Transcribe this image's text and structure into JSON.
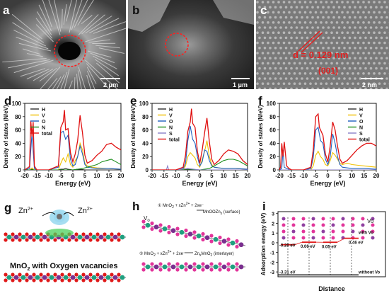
{
  "figure": {
    "panels": {
      "a": {
        "letter": "a",
        "scale_bar": "2 μm"
      },
      "b": {
        "letter": "b",
        "scale_bar": "1 μm"
      },
      "c": {
        "letter": "c",
        "scale_bar": "2 nm",
        "d_spacing": "d = 0.129 nm",
        "plane": "(001)"
      },
      "d": {
        "letter": "d"
      },
      "e": {
        "letter": "e"
      },
      "f": {
        "letter": "f"
      },
      "g": {
        "letter": "g",
        "ion_left": "Zn2+",
        "ion_right": "Zn2+",
        "caption": "MnO2 with Oxygen vacancies"
      },
      "h": {
        "letter": "h",
        "vo": "Vo",
        "reaction1": "① MnO2 + xZn2+ + 2xe⁻",
        "product1": "MnOOZnx (surface)",
        "reaction2": "② MnO2 + xZn2+ + 2xe⁻",
        "product2": "ZnxMnO2 (interlayer)"
      },
      "i": {
        "letter": "i",
        "vo": "Vo"
      }
    },
    "colors": {
      "H": "#2f2f2f",
      "V": "#f0c000",
      "O": "#1f5fbf",
      "N": "#1f8f1f",
      "S": "#8a7fc8",
      "total": "#e01010"
    }
  },
  "chart_data": [
    {
      "type": "line",
      "panel": "d",
      "xlabel": "Energy (eV)",
      "ylabel": "Density of states (N/eV)",
      "xlim": [
        -20,
        20
      ],
      "ylim": [
        0,
        100
      ],
      "xticks": [
        -20,
        -15,
        -10,
        -5,
        0,
        5,
        10,
        15,
        20
      ],
      "yticks": [
        0,
        20,
        40,
        60,
        80,
        100
      ],
      "legend_position": "top-left",
      "series": [
        {
          "name": "H",
          "x": [
            -20,
            -18,
            -17,
            -16,
            -15,
            -14,
            -10,
            -6,
            -5,
            -4,
            -3,
            -2,
            0,
            2,
            3,
            5,
            10,
            15,
            20
          ],
          "y": [
            0,
            0,
            1,
            0,
            0,
            0,
            0,
            0,
            1,
            1,
            2,
            1,
            0,
            1,
            1,
            0,
            0,
            0,
            0
          ]
        },
        {
          "name": "V",
          "x": [
            -20,
            -18,
            -17,
            -16,
            -15,
            -10,
            -6,
            -5,
            -4,
            -3,
            -2,
            -1,
            0,
            1,
            2,
            3,
            4,
            5,
            6,
            8,
            10,
            15,
            20
          ],
          "y": [
            0,
            0,
            3,
            0,
            0,
            0,
            0,
            10,
            18,
            12,
            24,
            8,
            4,
            14,
            20,
            40,
            30,
            10,
            6,
            4,
            3,
            2,
            1
          ]
        },
        {
          "name": "O",
          "x": [
            -20,
            -18,
            -17,
            -16,
            -15,
            -10,
            -6,
            -5,
            -4,
            -3,
            -2,
            -1,
            0,
            1,
            2,
            3,
            4,
            5,
            6,
            8,
            10,
            15,
            20
          ],
          "y": [
            0,
            2,
            55,
            2,
            0,
            0,
            4,
            56,
            58,
            46,
            52,
            16,
            6,
            8,
            20,
            36,
            24,
            8,
            4,
            3,
            2,
            2,
            1
          ]
        },
        {
          "name": "N",
          "x": [
            -20,
            -15,
            -10,
            -5,
            0,
            2,
            4,
            6,
            8,
            10,
            12,
            14,
            16,
            18,
            20
          ],
          "y": [
            0,
            0,
            0,
            0,
            0,
            1,
            2,
            4,
            6,
            8,
            12,
            14,
            16,
            12,
            8
          ]
        },
        {
          "name": "total",
          "x": [
            -20,
            -18,
            -17.5,
            -17,
            -16.5,
            -16,
            -15,
            -10,
            -6,
            -5,
            -4,
            -3.5,
            -3,
            -2,
            -1,
            0,
            1,
            2,
            3,
            4,
            5,
            6,
            8,
            10,
            12,
            14,
            16,
            18,
            20
          ],
          "y": [
            0,
            5,
            74,
            50,
            72,
            6,
            0,
            0,
            6,
            64,
            72,
            90,
            60,
            62,
            26,
            12,
            24,
            44,
            82,
            56,
            22,
            10,
            14,
            22,
            28,
            38,
            40,
            34,
            30
          ]
        }
      ]
    },
    {
      "type": "line",
      "panel": "e",
      "xlabel": "Energy (eV)",
      "ylabel": "Density of states (N/eV)",
      "xlim": [
        -20,
        20
      ],
      "ylim": [
        0,
        100
      ],
      "xticks": [
        -20,
        -15,
        -10,
        -5,
        0,
        5,
        10,
        15,
        20
      ],
      "yticks": [
        0,
        20,
        40,
        60,
        80,
        100
      ],
      "legend_position": "top-left",
      "series": [
        {
          "name": "H",
          "x": [
            -20,
            -15,
            -10,
            -5,
            0,
            5,
            10,
            15,
            20
          ],
          "y": [
            0,
            0,
            0,
            1,
            0,
            0,
            0,
            0,
            0
          ]
        },
        {
          "name": "V",
          "x": [
            -20,
            -15,
            -10,
            -7,
            -6,
            -5,
            -4,
            -3,
            -2,
            -1,
            0,
            1,
            2,
            3,
            4,
            5,
            6,
            8,
            10,
            15,
            20
          ],
          "y": [
            0,
            0,
            0,
            0,
            6,
            20,
            26,
            22,
            18,
            8,
            4,
            16,
            28,
            44,
            20,
            8,
            4,
            3,
            2,
            2,
            1
          ]
        },
        {
          "name": "O",
          "x": [
            -20,
            -15,
            -10,
            -7,
            -6,
            -5,
            -4,
            -3,
            -2,
            -1,
            0,
            1,
            2,
            3,
            4,
            5,
            6,
            8,
            10,
            15,
            20
          ],
          "y": [
            0,
            0,
            0,
            2,
            10,
            44,
            66,
            46,
            40,
            20,
            6,
            12,
            30,
            28,
            14,
            6,
            4,
            3,
            2,
            2,
            1
          ]
        },
        {
          "name": "N",
          "x": [
            -20,
            -15,
            -10,
            -5,
            0,
            4,
            6,
            8,
            10,
            12,
            14,
            16,
            18,
            20
          ],
          "y": [
            0,
            0,
            0,
            0,
            0,
            2,
            6,
            10,
            14,
            16,
            16,
            14,
            10,
            6
          ]
        },
        {
          "name": "S",
          "x": [
            -20,
            -15,
            -14,
            -13.5,
            -13,
            -12,
            -10,
            -5,
            0,
            5,
            10,
            15,
            20
          ],
          "y": [
            0,
            0,
            0,
            6,
            0,
            0,
            0,
            2,
            0,
            0,
            0,
            0,
            0
          ]
        },
        {
          "name": "total",
          "x": [
            -20,
            -15,
            -10,
            -7,
            -6,
            -5,
            -4,
            -3.5,
            -3,
            -2,
            -1,
            0,
            1,
            2,
            3,
            4,
            5,
            6,
            8,
            10,
            12,
            14,
            16,
            18,
            20
          ],
          "y": [
            0,
            0,
            0,
            4,
            22,
            58,
            72,
            92,
            70,
            64,
            28,
            10,
            30,
            56,
            78,
            42,
            16,
            8,
            14,
            24,
            30,
            28,
            24,
            14,
            8
          ]
        }
      ]
    },
    {
      "type": "line",
      "panel": "f",
      "xlabel": "Energy (eV)",
      "ylabel": "Density of states (N/eV)",
      "xlim": [
        -20,
        20
      ],
      "ylim": [
        0,
        100
      ],
      "xticks": [
        -20,
        -15,
        -10,
        -5,
        0,
        5,
        10,
        15,
        20
      ],
      "yticks": [
        0,
        20,
        40,
        60,
        80,
        100
      ],
      "legend_position": "top-right",
      "series": [
        {
          "name": "H",
          "x": [
            -20,
            -15,
            -10,
            -5,
            0,
            5,
            10,
            15,
            20
          ],
          "y": [
            0,
            0,
            0,
            0,
            0,
            0,
            0,
            0,
            0
          ]
        },
        {
          "name": "V",
          "x": [
            -20,
            -15,
            -10,
            -7,
            -6,
            -5,
            -4,
            -3,
            -2,
            -1,
            0,
            1,
            2,
            3,
            4,
            5,
            6,
            8,
            10,
            15,
            20
          ],
          "y": [
            0,
            0,
            0,
            0,
            6,
            22,
            28,
            20,
            16,
            8,
            6,
            14,
            26,
            22,
            16,
            10,
            8,
            10,
            8,
            6,
            4
          ]
        },
        {
          "name": "O",
          "x": [
            -20,
            -19,
            -18.5,
            -18,
            -17,
            -15,
            -10,
            -7,
            -6,
            -5,
            -4,
            -3,
            -2,
            -1,
            0,
            1,
            2,
            3,
            4,
            5,
            6,
            8,
            10,
            15,
            20
          ],
          "y": [
            0,
            2,
            30,
            4,
            2,
            0,
            0,
            2,
            18,
            60,
            64,
            44,
            40,
            16,
            8,
            20,
            54,
            40,
            20,
            8,
            4,
            3,
            2,
            2,
            1
          ]
        },
        {
          "name": "N",
          "x": [
            -20,
            -15,
            -10,
            -5,
            0,
            5,
            10,
            15,
            20
          ],
          "y": [
            0,
            0,
            0,
            0,
            0,
            0,
            0,
            0,
            0
          ]
        },
        {
          "name": "S",
          "x": [
            -20,
            -15,
            -10,
            -5,
            0,
            5,
            10,
            15,
            20
          ],
          "y": [
            0,
            0,
            0,
            0,
            0,
            0,
            0,
            0,
            0
          ]
        },
        {
          "name": "total",
          "x": [
            -20,
            -19.5,
            -19,
            -18.5,
            -18,
            -17,
            -16,
            -15,
            -10,
            -7,
            -6,
            -5,
            -4,
            -3.5,
            -3,
            -2,
            -1,
            0,
            1,
            2,
            3,
            4,
            5,
            6,
            8,
            10,
            12,
            14,
            16,
            18,
            20
          ],
          "y": [
            0,
            4,
            40,
            20,
            42,
            6,
            2,
            0,
            0,
            4,
            30,
            80,
            84,
            64,
            60,
            52,
            24,
            12,
            36,
            72,
            60,
            36,
            16,
            10,
            14,
            22,
            30,
            36,
            40,
            40,
            36
          ]
        }
      ]
    },
    {
      "type": "line",
      "panel": "i",
      "xlabel": "Distance",
      "ylabel": "Adsorption energy (eV)",
      "ylim": [
        -3.5,
        3.2
      ],
      "yticks": [
        3,
        2,
        1,
        0,
        -1,
        -2,
        -3
      ],
      "series": [
        {
          "name": "with Vo",
          "points": [
            "-0.20 eV",
            "0.06 eV",
            "0.05 eV",
            "0.46 eV"
          ],
          "y": [
            -0.2,
            0.06,
            0.05,
            0.46
          ]
        },
        {
          "name": "without Vo",
          "points": [
            "-3.31 eV"
          ],
          "y": [
            -3.31,
            -3.31,
            -3.31,
            -3.31
          ]
        }
      ],
      "labels": {
        "with": "with Vo",
        "without": "without Vo",
        "e1": "-0.20 eV",
        "e2": "0.06 eV",
        "e3": "0.05 eV",
        "e4": "0.46 eV",
        "e5": "-3.31 eV"
      }
    }
  ]
}
